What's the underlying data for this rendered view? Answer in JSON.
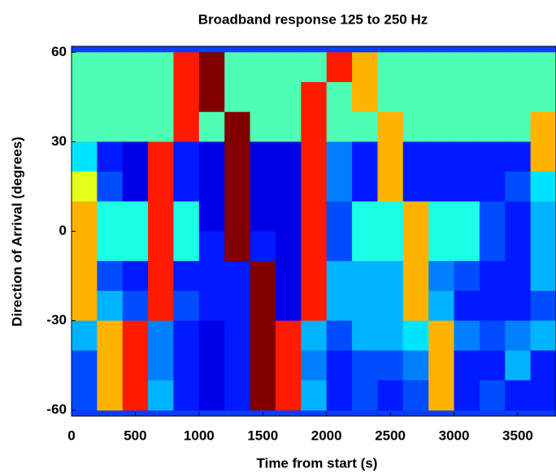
{
  "chart_data": {
    "type": "heatmap",
    "title": "Broadband response 125 to 250 Hz",
    "xlabel": "Time from start (s)",
    "ylabel": "Direction of Arrival (degrees)",
    "colormap": "jet",
    "zlim": [
      0,
      1
    ],
    "xlim": [
      0,
      3800
    ],
    "ylim": [
      -62,
      62
    ],
    "xticks": [
      0,
      500,
      1000,
      1500,
      2000,
      2500,
      3000,
      3500
    ],
    "yticks": [
      -60,
      -30,
      0,
      30,
      60
    ],
    "x": [
      100,
      300,
      500,
      700,
      900,
      1100,
      1300,
      1500,
      1700,
      1900,
      2100,
      2300,
      2500,
      2700,
      2900,
      3100,
      3300,
      3500,
      3700
    ],
    "y": [
      55,
      45,
      35,
      25,
      15,
      5,
      -5,
      -15,
      -25,
      -35,
      -45,
      -55
    ],
    "z": [
      [
        0.45,
        0.45,
        0.45,
        0.45,
        0.85,
        1.0,
        0.45,
        0.45,
        0.45,
        0.45,
        0.85,
        0.7,
        0.45,
        0.45,
        0.45,
        0.45,
        0.45,
        0.45,
        0.45
      ],
      [
        0.45,
        0.45,
        0.45,
        0.45,
        0.85,
        1.0,
        0.45,
        0.45,
        0.45,
        0.85,
        0.45,
        0.7,
        0.45,
        0.45,
        0.45,
        0.45,
        0.45,
        0.45,
        0.45
      ],
      [
        0.45,
        0.45,
        0.45,
        0.45,
        0.85,
        0.45,
        1.0,
        0.45,
        0.45,
        0.85,
        0.45,
        0.45,
        0.7,
        0.45,
        0.45,
        0.45,
        0.45,
        0.45,
        0.7
      ],
      [
        0.35,
        0.15,
        0.1,
        0.85,
        0.15,
        0.1,
        1.0,
        0.1,
        0.1,
        0.85,
        0.25,
        0.15,
        0.7,
        0.15,
        0.15,
        0.15,
        0.15,
        0.15,
        0.7
      ],
      [
        0.6,
        0.2,
        0.1,
        0.85,
        0.15,
        0.1,
        1.0,
        0.1,
        0.1,
        0.85,
        0.25,
        0.15,
        0.7,
        0.15,
        0.15,
        0.15,
        0.15,
        0.2,
        0.35
      ],
      [
        0.7,
        0.4,
        0.4,
        0.85,
        0.4,
        0.1,
        1.0,
        0.1,
        0.1,
        0.85,
        0.2,
        0.4,
        0.4,
        0.7,
        0.4,
        0.4,
        0.2,
        0.15,
        0.3
      ],
      [
        0.7,
        0.4,
        0.4,
        0.85,
        0.4,
        0.15,
        1.0,
        0.15,
        0.1,
        0.85,
        0.2,
        0.4,
        0.4,
        0.7,
        0.4,
        0.4,
        0.2,
        0.15,
        0.3
      ],
      [
        0.7,
        0.2,
        0.15,
        0.85,
        0.15,
        0.15,
        0.15,
        1.0,
        0.1,
        0.85,
        0.3,
        0.3,
        0.3,
        0.7,
        0.25,
        0.2,
        0.15,
        0.15,
        0.3
      ],
      [
        0.7,
        0.3,
        0.2,
        0.85,
        0.2,
        0.15,
        0.15,
        1.0,
        0.1,
        0.85,
        0.3,
        0.3,
        0.3,
        0.7,
        0.3,
        0.15,
        0.15,
        0.15,
        0.2
      ],
      [
        0.3,
        0.7,
        0.85,
        0.25,
        0.15,
        0.1,
        0.15,
        1.0,
        0.85,
        0.3,
        0.2,
        0.3,
        0.3,
        0.35,
        0.7,
        0.25,
        0.2,
        0.25,
        0.3
      ],
      [
        0.2,
        0.7,
        0.85,
        0.25,
        0.15,
        0.1,
        0.15,
        1.0,
        0.85,
        0.25,
        0.15,
        0.2,
        0.2,
        0.25,
        0.7,
        0.15,
        0.15,
        0.3,
        0.15
      ],
      [
        0.2,
        0.7,
        0.85,
        0.3,
        0.15,
        0.1,
        0.15,
        1.0,
        0.85,
        0.3,
        0.15,
        0.2,
        0.15,
        0.2,
        0.7,
        0.15,
        0.2,
        0.15,
        0.15
      ]
    ]
  }
}
